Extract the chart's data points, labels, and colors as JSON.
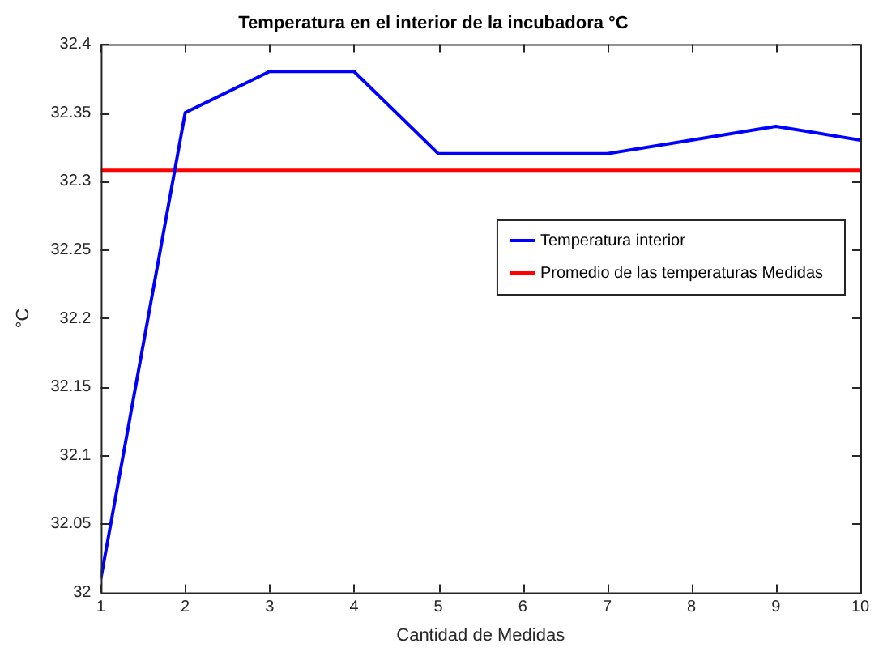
{
  "chart_data": {
    "type": "line",
    "title": "Temperatura en el interior de la incubadora °C",
    "xlabel": "Cantidad de Medidas",
    "ylabel": "°C",
    "x": [
      1,
      2,
      3,
      4,
      5,
      6,
      7,
      8,
      9,
      10
    ],
    "series": [
      {
        "name": "Temperatura interior",
        "color": "#0000ff",
        "values": [
          32.01,
          32.35,
          32.38,
          32.38,
          32.32,
          32.32,
          32.32,
          32.33,
          32.34,
          32.33
        ]
      },
      {
        "name": "Promedio de las temperaturas Medidas",
        "color": "#ff0000",
        "values": [
          32.308,
          32.308,
          32.308,
          32.308,
          32.308,
          32.308,
          32.308,
          32.308,
          32.308,
          32.308
        ]
      }
    ],
    "xlim": [
      1,
      10
    ],
    "xticks": [
      1,
      2,
      3,
      4,
      5,
      6,
      7,
      8,
      9,
      10
    ],
    "ylim": [
      32,
      32.4
    ],
    "yticks": [
      32,
      32.05,
      32.1,
      32.15,
      32.2,
      32.25,
      32.3,
      32.35,
      32.4
    ],
    "grid": false,
    "legend": "right",
    "marker": "none",
    "line_style": "solid"
  }
}
